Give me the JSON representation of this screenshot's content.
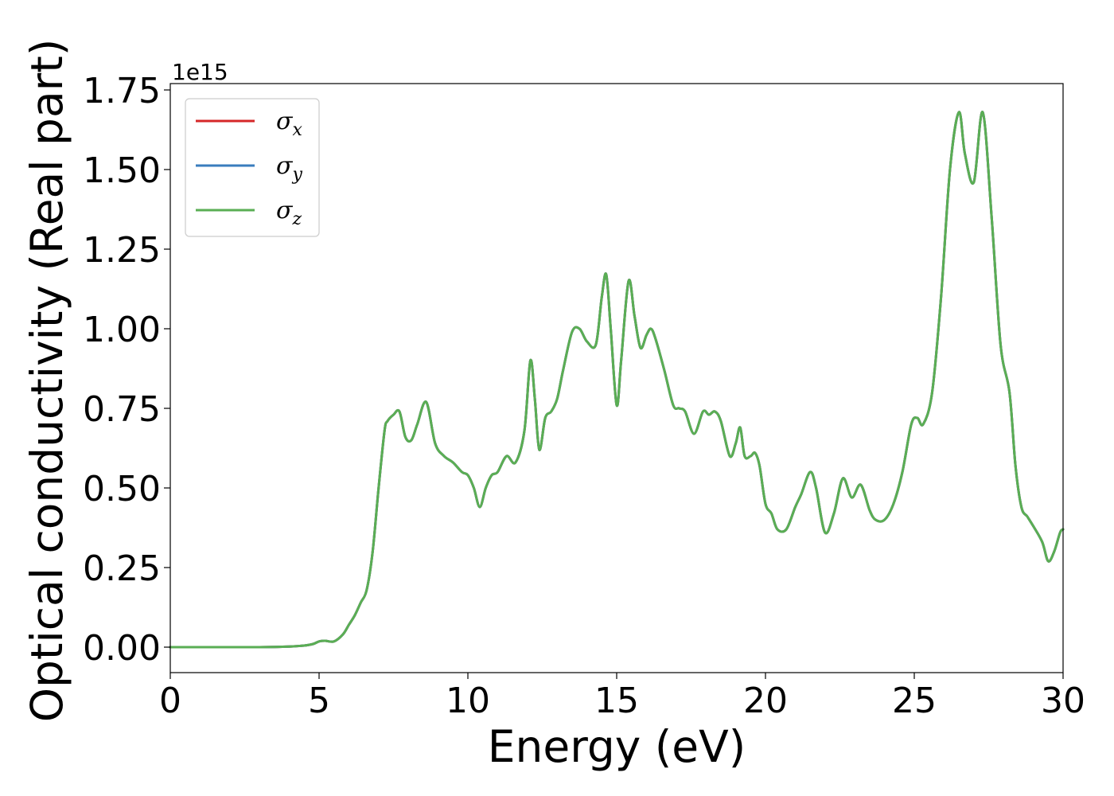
{
  "chart_data": {
    "type": "line",
    "xlabel": "Energy (eV)",
    "ylabel": "Optical conductivity (Real part)",
    "y_offset_label": "1e15",
    "xlim": [
      0,
      30
    ],
    "ylim": [
      -0.08,
      1.77
    ],
    "x_ticks": [
      0,
      5,
      10,
      15,
      20,
      25,
      30
    ],
    "x_tick_labels": [
      "0",
      "5",
      "10",
      "15",
      "20",
      "25",
      "30"
    ],
    "y_ticks": [
      0,
      0.25,
      0.5,
      0.75,
      1.0,
      1.25,
      1.5,
      1.75
    ],
    "y_tick_labels": [
      "0.00",
      "0.25",
      "0.50",
      "0.75",
      "1.00",
      "1.25",
      "1.50",
      "1.75"
    ],
    "grid": false,
    "legend_position": "top-left",
    "x": [
      0,
      1,
      2,
      3,
      4,
      4.5,
      4.8,
      5.0,
      5.2,
      5.5,
      5.8,
      6.0,
      6.2,
      6.4,
      6.6,
      6.8,
      7.0,
      7.2,
      7.3,
      7.5,
      7.7,
      7.9,
      8.1,
      8.3,
      8.6,
      8.9,
      9.2,
      9.5,
      9.8,
      10.0,
      10.2,
      10.4,
      10.6,
      10.8,
      11.0,
      11.3,
      11.6,
      11.9,
      12.1,
      12.25,
      12.4,
      12.6,
      12.8,
      13.0,
      13.2,
      13.5,
      13.75,
      14.0,
      14.3,
      14.5,
      14.65,
      14.8,
      15.0,
      15.15,
      15.4,
      15.6,
      15.8,
      16.0,
      16.15,
      16.3,
      16.6,
      16.9,
      17.1,
      17.3,
      17.6,
      17.9,
      18.1,
      18.3,
      18.5,
      18.8,
      19.0,
      19.15,
      19.3,
      19.5,
      19.65,
      19.8,
      20.0,
      20.2,
      20.4,
      20.7,
      21.0,
      21.2,
      21.5,
      21.7,
      22.0,
      22.3,
      22.6,
      22.9,
      23.2,
      23.5,
      23.7,
      24.0,
      24.3,
      24.6,
      24.9,
      25.1,
      25.3,
      25.6,
      25.9,
      26.2,
      26.5,
      26.7,
      27.0,
      27.3,
      27.6,
      27.9,
      28.2,
      28.4,
      28.6,
      28.8,
      29.0,
      29.3,
      29.5,
      29.7,
      29.9,
      30.0
    ],
    "series": [
      {
        "name": "σx",
        "color": "#d62728",
        "values": [
          0,
          0,
          0,
          0,
          0.002,
          0.005,
          0.01,
          0.018,
          0.02,
          0.018,
          0.04,
          0.07,
          0.1,
          0.14,
          0.18,
          0.3,
          0.5,
          0.68,
          0.71,
          0.73,
          0.74,
          0.66,
          0.65,
          0.7,
          0.77,
          0.64,
          0.6,
          0.58,
          0.55,
          0.54,
          0.5,
          0.44,
          0.5,
          0.54,
          0.55,
          0.6,
          0.58,
          0.68,
          0.9,
          0.78,
          0.62,
          0.72,
          0.74,
          0.78,
          0.87,
          0.99,
          1.0,
          0.96,
          0.95,
          1.1,
          1.17,
          1.0,
          0.76,
          0.9,
          1.15,
          1.04,
          0.94,
          0.98,
          1.0,
          0.97,
          0.87,
          0.76,
          0.75,
          0.74,
          0.67,
          0.74,
          0.73,
          0.74,
          0.71,
          0.6,
          0.64,
          0.69,
          0.6,
          0.6,
          0.61,
          0.57,
          0.45,
          0.42,
          0.37,
          0.37,
          0.44,
          0.48,
          0.55,
          0.5,
          0.36,
          0.42,
          0.53,
          0.47,
          0.51,
          0.43,
          0.4,
          0.4,
          0.45,
          0.55,
          0.7,
          0.72,
          0.7,
          0.8,
          1.1,
          1.5,
          1.68,
          1.55,
          1.46,
          1.68,
          1.35,
          0.95,
          0.8,
          0.57,
          0.44,
          0.41,
          0.38,
          0.33,
          0.27,
          0.3,
          0.36,
          0.37
        ]
      },
      {
        "name": "σy",
        "color": "#3a7dbd",
        "values": [
          0,
          0,
          0,
          0,
          0.002,
          0.005,
          0.01,
          0.018,
          0.02,
          0.018,
          0.04,
          0.07,
          0.1,
          0.14,
          0.18,
          0.3,
          0.5,
          0.68,
          0.71,
          0.73,
          0.74,
          0.66,
          0.65,
          0.7,
          0.77,
          0.64,
          0.6,
          0.58,
          0.55,
          0.54,
          0.5,
          0.44,
          0.5,
          0.54,
          0.55,
          0.6,
          0.58,
          0.68,
          0.9,
          0.78,
          0.62,
          0.72,
          0.74,
          0.78,
          0.87,
          0.99,
          1.0,
          0.96,
          0.95,
          1.1,
          1.17,
          1.0,
          0.76,
          0.9,
          1.15,
          1.04,
          0.94,
          0.98,
          1.0,
          0.97,
          0.87,
          0.76,
          0.75,
          0.74,
          0.67,
          0.74,
          0.73,
          0.74,
          0.71,
          0.6,
          0.64,
          0.69,
          0.6,
          0.6,
          0.61,
          0.57,
          0.45,
          0.42,
          0.37,
          0.37,
          0.44,
          0.48,
          0.55,
          0.5,
          0.36,
          0.42,
          0.53,
          0.47,
          0.51,
          0.43,
          0.4,
          0.4,
          0.45,
          0.55,
          0.7,
          0.72,
          0.7,
          0.8,
          1.1,
          1.5,
          1.68,
          1.55,
          1.46,
          1.68,
          1.35,
          0.95,
          0.8,
          0.57,
          0.44,
          0.41,
          0.38,
          0.33,
          0.27,
          0.3,
          0.36,
          0.37
        ]
      },
      {
        "name": "σz",
        "color": "#5aae54",
        "values": [
          0,
          0,
          0,
          0,
          0.002,
          0.005,
          0.01,
          0.018,
          0.02,
          0.018,
          0.04,
          0.07,
          0.1,
          0.14,
          0.18,
          0.3,
          0.5,
          0.68,
          0.71,
          0.73,
          0.74,
          0.66,
          0.65,
          0.7,
          0.77,
          0.64,
          0.6,
          0.58,
          0.55,
          0.54,
          0.5,
          0.44,
          0.5,
          0.54,
          0.55,
          0.6,
          0.58,
          0.68,
          0.9,
          0.78,
          0.62,
          0.72,
          0.74,
          0.78,
          0.87,
          0.99,
          1.0,
          0.96,
          0.95,
          1.1,
          1.17,
          1.0,
          0.76,
          0.9,
          1.15,
          1.04,
          0.94,
          0.98,
          1.0,
          0.97,
          0.87,
          0.76,
          0.75,
          0.74,
          0.67,
          0.74,
          0.73,
          0.74,
          0.71,
          0.6,
          0.64,
          0.69,
          0.6,
          0.6,
          0.61,
          0.57,
          0.45,
          0.42,
          0.37,
          0.37,
          0.44,
          0.48,
          0.55,
          0.5,
          0.36,
          0.42,
          0.53,
          0.47,
          0.51,
          0.43,
          0.4,
          0.4,
          0.45,
          0.55,
          0.7,
          0.72,
          0.7,
          0.8,
          1.1,
          1.5,
          1.68,
          1.55,
          1.46,
          1.68,
          1.35,
          0.95,
          0.8,
          0.57,
          0.44,
          0.41,
          0.38,
          0.33,
          0.27,
          0.3,
          0.36,
          0.37
        ]
      }
    ]
  }
}
